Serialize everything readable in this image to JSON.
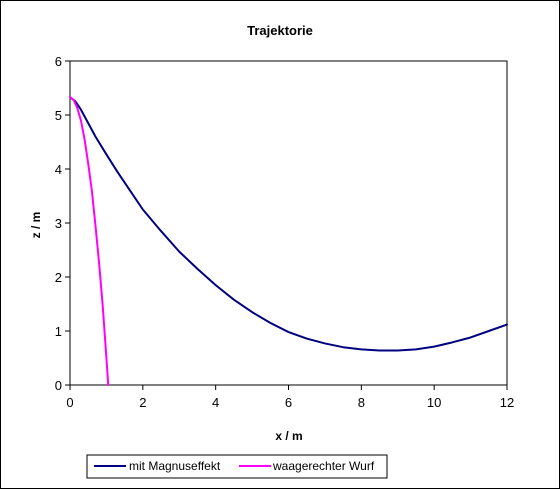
{
  "chart_data": {
    "type": "line",
    "title": "Trajektorie",
    "xlabel": "x / m",
    "ylabel": "z / m",
    "xlim": [
      0,
      12
    ],
    "ylim": [
      0,
      6
    ],
    "xticks": [
      "0",
      "2",
      "4",
      "6",
      "8",
      "10",
      "12"
    ],
    "yticks": [
      "0",
      "1",
      "2",
      "3",
      "4",
      "5",
      "6"
    ],
    "grid": false,
    "legend_position": "bottom",
    "series": [
      {
        "name": "mit Magnuseffekt",
        "color": "#000080",
        "x": [
          0,
          0.15,
          0.3,
          0.5,
          0.7,
          1.0,
          1.3,
          1.6,
          2.0,
          2.5,
          3.0,
          3.5,
          4.0,
          4.5,
          5.0,
          5.5,
          6.0,
          6.5,
          7.0,
          7.5,
          8.0,
          8.5,
          9.0,
          9.5,
          10.0,
          10.5,
          11.0,
          11.5,
          12.0
        ],
        "z": [
          5.33,
          5.25,
          5.1,
          4.85,
          4.6,
          4.27,
          3.95,
          3.65,
          3.25,
          2.85,
          2.47,
          2.15,
          1.85,
          1.58,
          1.35,
          1.15,
          0.98,
          0.86,
          0.77,
          0.7,
          0.66,
          0.64,
          0.64,
          0.66,
          0.71,
          0.79,
          0.88,
          1.0,
          1.12
        ]
      },
      {
        "name": "waagerechter Wurf",
        "color": "#ff00ff",
        "x": [
          0,
          0.1,
          0.2,
          0.3,
          0.4,
          0.5,
          0.6,
          0.7,
          0.8,
          0.9,
          1.0,
          1.05
        ],
        "z": [
          5.33,
          5.28,
          5.13,
          4.9,
          4.55,
          4.1,
          3.6,
          2.95,
          2.25,
          1.45,
          0.5,
          0.0
        ]
      }
    ]
  },
  "colors": {
    "axis": "#000000",
    "background": "#ffffff"
  }
}
